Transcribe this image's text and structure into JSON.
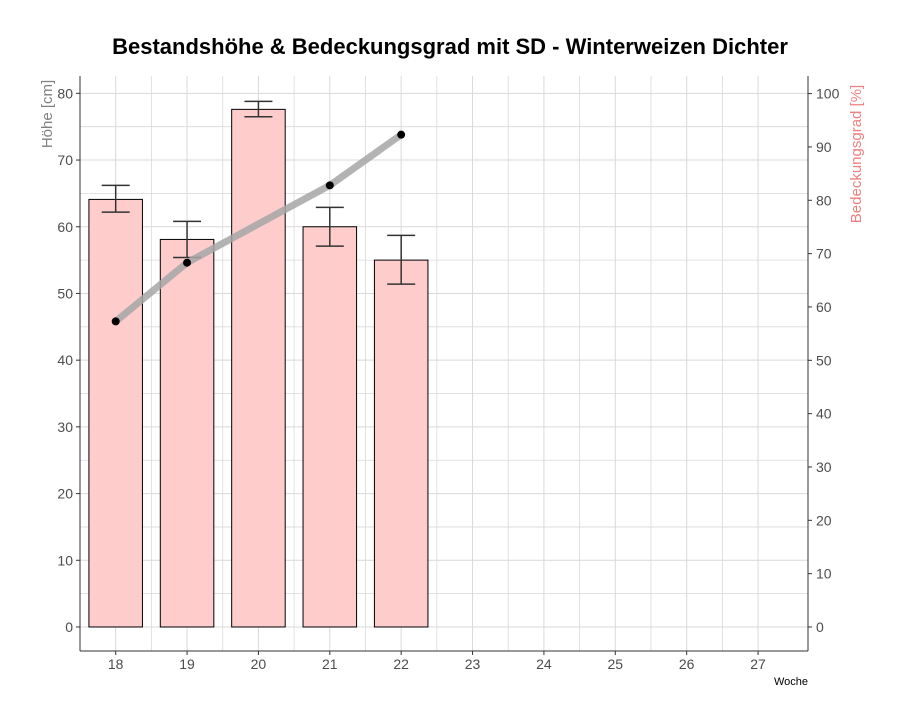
{
  "chart_data": {
    "type": "bar",
    "title": "Bestandshöhe & Bedeckungsgrad mit SD - Winterweizen Dichter",
    "xlabel": "Woche",
    "ylabel": "Höhe [cm]",
    "ylabel_right": "Bedeckungsgrad [%]",
    "x_ticks": [
      18,
      19,
      20,
      21,
      22,
      23,
      24,
      25,
      26,
      27
    ],
    "xlim": [
      17.5,
      27.7
    ],
    "ylim": [
      -3.6,
      82.6
    ],
    "ylim_right": [
      -4.5,
      103.3
    ],
    "y_ticks": [
      0,
      10,
      20,
      30,
      40,
      50,
      60,
      70,
      80
    ],
    "y_ticks_right": [
      0,
      10,
      20,
      30,
      40,
      50,
      60,
      70,
      80,
      90,
      100
    ],
    "grid": true,
    "bars": {
      "name": "Höhe [cm]",
      "x": [
        18,
        19,
        20,
        21,
        22
      ],
      "values": [
        64.1,
        58.1,
        77.6,
        60.0,
        55.0
      ],
      "sd_low": [
        62.2,
        55.4,
        76.5,
        57.1,
        51.4
      ],
      "sd_high": [
        66.2,
        60.8,
        78.8,
        62.9,
        58.7
      ],
      "fill": "#ffcccc",
      "stroke": "#000000",
      "errorbar_color": "#333333"
    },
    "line": {
      "name": "Bedeckungsgrad [%]",
      "axis": "right",
      "x": [
        18,
        19,
        21,
        22
      ],
      "values": [
        57.3,
        68.3,
        82.8,
        92.3
      ],
      "line_color": "#a6a6a6",
      "point_color": "#000000"
    }
  }
}
